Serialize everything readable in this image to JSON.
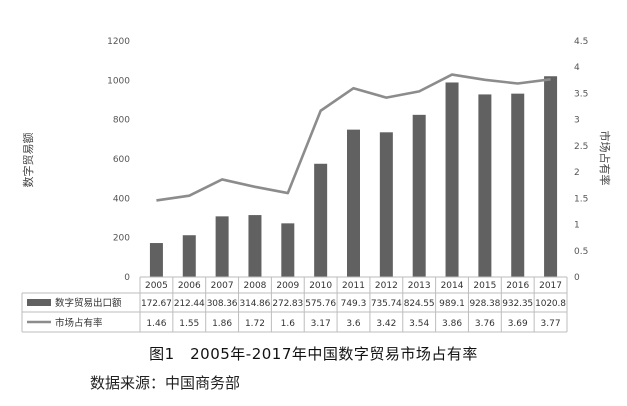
{
  "chart_data": {
    "type": "bar",
    "categories": [
      "2005",
      "2006",
      "2007",
      "2008",
      "2009",
      "2010",
      "2011",
      "2012",
      "2013",
      "2014",
      "2015",
      "2016",
      "2017"
    ],
    "series": [
      {
        "name": "数字贸易出口额",
        "type": "bar",
        "axis": "left",
        "color": "#616161",
        "values": [
          172.67,
          212.44,
          308.36,
          314.86,
          272.83,
          575.76,
          749.3,
          735.74,
          824.55,
          989.1,
          928.38,
          932.35,
          1020.8
        ],
        "labels": [
          "172.67",
          "212.44",
          "308.36",
          "314.86",
          "272.83",
          "575.76",
          "749.3",
          "735.74",
          "824.55",
          "989.1",
          "928.38",
          "932.35",
          "1020.8"
        ]
      },
      {
        "name": "市场占有率",
        "type": "line",
        "axis": "right",
        "color": "#8c8c8c",
        "values": [
          1.46,
          1.55,
          1.86,
          1.72,
          1.6,
          3.17,
          3.6,
          3.42,
          3.54,
          3.86,
          3.76,
          3.69,
          3.77
        ],
        "labels": [
          "1.46",
          "1.55",
          "1.86",
          "1.72",
          "1.6",
          "3.17",
          "3.6",
          "3.42",
          "3.54",
          "3.86",
          "3.76",
          "3.69",
          "3.77"
        ]
      }
    ],
    "ylabel": "数字贸易额",
    "y2label": "市场占有率",
    "ylim": [
      0,
      1200
    ],
    "y2lim": [
      0,
      4.5
    ],
    "yticks": [
      "0",
      "200",
      "400",
      "600",
      "800",
      "1000",
      "1200"
    ],
    "y2ticks": [
      "0",
      "0.5",
      "1",
      "1.5",
      "2",
      "2.5",
      "3",
      "3.5",
      "4",
      "4.5"
    ],
    "grid": false,
    "legend": "bottom table"
  },
  "caption": "图1　2005年-2017年中国数字贸易市场占有率",
  "source": "数据来源：中国商务部"
}
